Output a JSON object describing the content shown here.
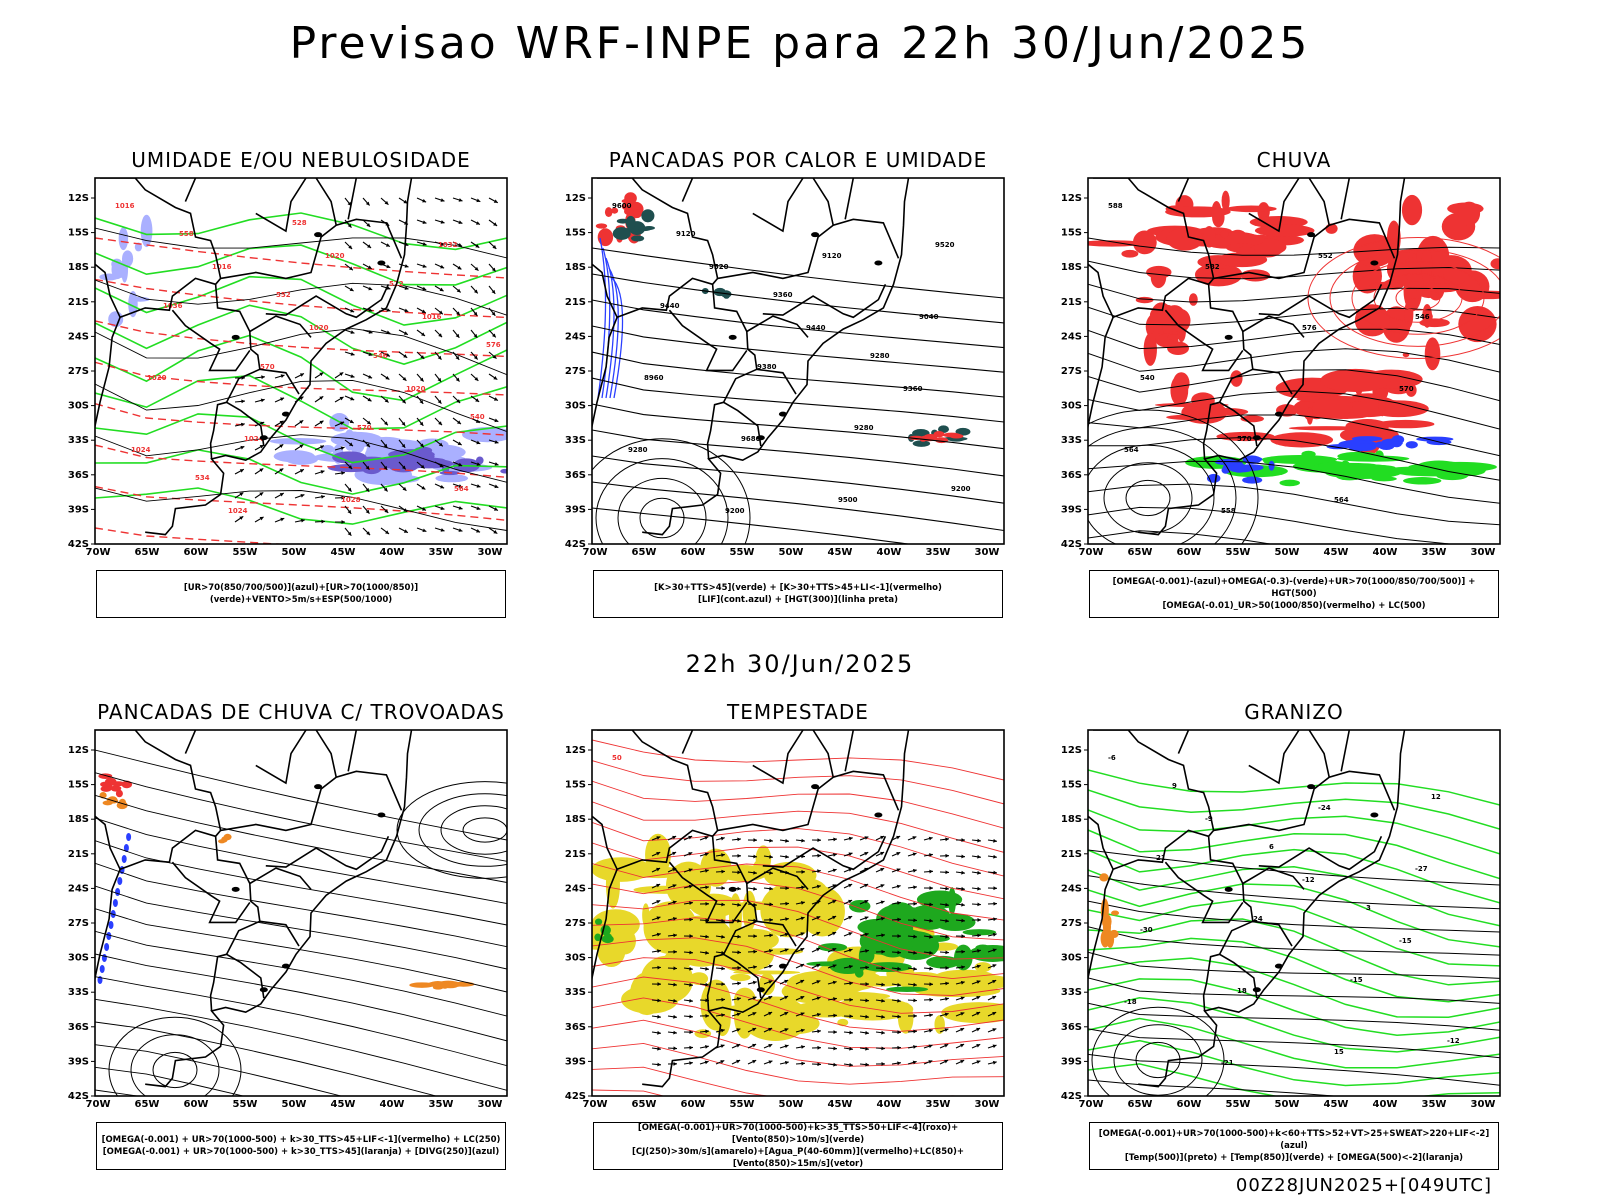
{
  "main_title": "Previsao WRF-INPE  para 22h 30/Jun/2025",
  "mid_title": "22h 30/Jun/2025",
  "footer": "00Z28JUN2025+[049UTC]",
  "axes": {
    "lat_labels": [
      "12S",
      "15S",
      "18S",
      "21S",
      "24S",
      "27S",
      "30S",
      "33S",
      "36S",
      "39S",
      "42S"
    ],
    "lon_labels": [
      "70W",
      "65W",
      "60W",
      "55W",
      "50W",
      "45W",
      "40W",
      "35W",
      "30W"
    ]
  },
  "colors": {
    "green": "#22dd22",
    "red": "#ee3333",
    "blue": "#2a3fff",
    "lightblue": "#aab0ff",
    "purple": "#6a5acd",
    "yellow": "#e8d82a",
    "orange": "#ee8822",
    "darkteal": "#1f4f4f"
  },
  "panels": [
    {
      "id": "umidade",
      "title": "UMIDADE E/OU NEBULOSIDADE",
      "legend": [
        "[UR>70(850/700/500)](azul)+[UR>70(1000/850)](verde)+VENTO>5m/s+ESP(500/1000)"
      ],
      "labels": [
        "1016",
        "1016",
        "1020",
        "1020",
        "1024",
        "1024",
        "1020",
        "1016",
        "1020",
        "1024",
        "1028",
        "1032",
        "1036",
        "570",
        "570",
        "564",
        "558",
        "552",
        "546",
        "540",
        "534",
        "528",
        "522",
        "576"
      ]
    },
    {
      "id": "pancadas-calor",
      "title": "PANCADAS POR CALOR E UMIDADE",
      "legend": [
        "[K>30+TTS>45](verde) + [K>30+TTS>45+LI<-1](vermelho)",
        "[LIF](cont.azul) + [HGT(300)](linha preta)"
      ],
      "labels": [
        "9600",
        "9520",
        "9440",
        "9360",
        "9280",
        "9200",
        "9120",
        "9040",
        "8960",
        "9680",
        "9500",
        "9520",
        "9440",
        "9380",
        "9280",
        "9200",
        "9120",
        "9360",
        "9280"
      ]
    },
    {
      "id": "chuva",
      "title": "CHUVA",
      "legend": [
        "[OMEGA(-0.001)-(azul)+OMEGA(-0.3)-(verde)+UR>70(1000/850/700/500)] + HGT(500)",
        "[OMEGA(-0.01)_UR>50(1000/850)(vermelho) + LC(500)"
      ],
      "labels": [
        "588",
        "582",
        "576",
        "570",
        "564",
        "558",
        "552",
        "546",
        "540",
        "570",
        "564"
      ]
    },
    {
      "id": "pancadas-trovoadas",
      "title": "PANCADAS DE CHUVA C/ TROVOADAS",
      "legend": [
        "[OMEGA(-0.001) + UR>70(1000-500) + k>30_TTS>45+LIF<-1](vermelho) + LC(250)",
        "[OMEGA(-0.001) + UR>70(1000-500) + k>30_TTS>45](laranja) + [DIVG(250)](azul)"
      ],
      "labels": []
    },
    {
      "id": "tempestade",
      "title": "TEMPESTADE",
      "legend": [
        "[OMEGA(-0.001)+UR>70(1000-500)+k>35_TTS>50+LIF<-4](roxo)+[Vento(850)>10m/s](verde)",
        "[CJ(250)>30m/s](amarelo)+[Agua_P(40-60mm)](vermelho)+LC(850)+[Vento(850)>15m/s](vetor)"
      ],
      "labels": [
        "50"
      ]
    },
    {
      "id": "granizo",
      "title": "GRANIZO",
      "legend": [
        "[OMEGA(-0.001)+UR>70(1000-500)+k<60+TTS>52+VT>25+SWEAT>220+LIF<-2](azul)",
        "[Temp(500)](preto) + [Temp(850)](verde) + [OMEGA(500)<-2](laranja)"
      ],
      "labels": [
        "-6",
        "-9",
        "-12",
        "-15",
        "-18",
        "-21",
        "-24",
        "-27",
        "-30",
        "18",
        "15",
        "12",
        "21",
        "24",
        "-15",
        "-12",
        "9",
        "6",
        "3"
      ]
    }
  ]
}
